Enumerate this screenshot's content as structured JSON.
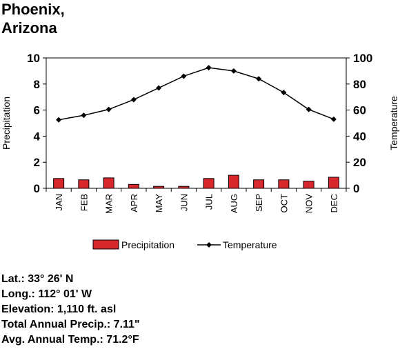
{
  "title_line1": "Phoenix,",
  "title_line2": "Arizona",
  "chart_data": {
    "type": "bar",
    "categories": [
      "JAN",
      "FEB",
      "MAR",
      "APR",
      "MAY",
      "JUN",
      "JUL",
      "AUG",
      "SEP",
      "OCT",
      "NOV",
      "DEC"
    ],
    "series": [
      {
        "name": "Precipitation",
        "type": "bar",
        "axis": "left",
        "color": "#d9272e",
        "values": [
          0.75,
          0.65,
          0.8,
          0.3,
          0.15,
          0.15,
          0.75,
          1.0,
          0.65,
          0.65,
          0.55,
          0.85
        ]
      },
      {
        "name": "Temperature",
        "type": "line",
        "axis": "right",
        "color": "#000000",
        "values": [
          52.5,
          56,
          60.5,
          68,
          77,
          86,
          92.5,
          90,
          84,
          73.5,
          60.5,
          53
        ]
      }
    ],
    "ylabel": "Precipitation",
    "y2label": "Temperature",
    "ylim": [
      0,
      10
    ],
    "y2lim": [
      0,
      100
    ],
    "yticks": [
      "0",
      "2",
      "4",
      "6",
      "8",
      "10"
    ],
    "y2ticks": [
      "0",
      "20",
      "40",
      "60",
      "80",
      "100"
    ],
    "grid": false,
    "legend_position": "bottom"
  },
  "stats": [
    "Lat.: 33° 26' N",
    "Long.: 112° 01' W",
    "Elevation: 1,110 ft. asl",
    "Total Annual Precip.: 7.11\"",
    "Avg. Annual Temp.: 71.2°F"
  ]
}
